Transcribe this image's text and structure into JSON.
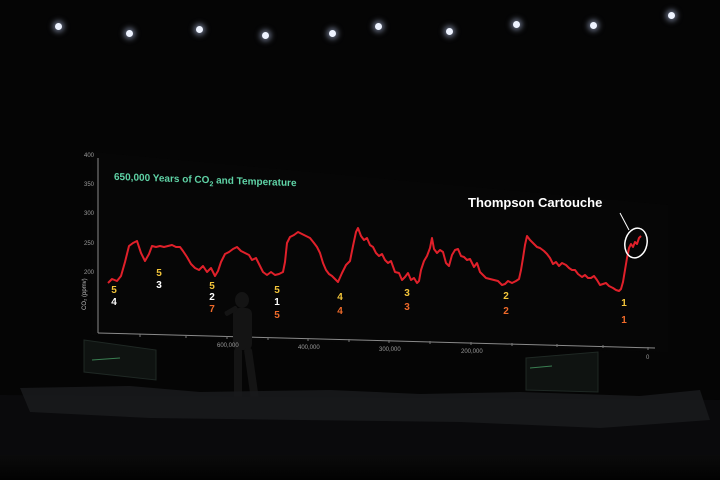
{
  "slide": {
    "title_main": "650,000 Years of CO",
    "title_sub": "2",
    "title_rest": " and Temperature",
    "callout": "Thompson Cartouche",
    "y_axis_label": "CO₂ (ppmv)",
    "y_ticks": [
      "400",
      "350",
      "300",
      "250",
      "200"
    ],
    "x_ticks": [
      "600,000",
      "400,000",
      "300,000",
      "200,000",
      "0"
    ],
    "markers": [
      {
        "top": "5",
        "bottom": "4",
        "top_color": "yellow",
        "bottom_color": "white"
      },
      {
        "top": "5",
        "bottom": "3",
        "top_color": "yellow",
        "bottom_color": "white"
      },
      {
        "top": "5",
        "mid": "2",
        "bottom": "7",
        "top_color": "yellow",
        "mid_color": "white",
        "bottom_color": "orange"
      },
      {
        "top": "5",
        "mid": "1",
        "bottom": "5",
        "top_color": "yellow",
        "mid_color": "white",
        "bottom_color": "orange"
      },
      {
        "top": "4",
        "bottom": "4",
        "top_color": "yellow",
        "bottom_color": "orange"
      },
      {
        "top": "3",
        "bottom": "3",
        "top_color": "yellow",
        "bottom_color": "orange"
      },
      {
        "top": "2",
        "bottom": "2",
        "top_color": "yellow",
        "bottom_color": "orange"
      },
      {
        "top": "1",
        "bottom": "1",
        "top_color": "yellow",
        "bottom_color": "orange"
      }
    ]
  },
  "colors": {
    "background": "#050505",
    "curve": "#e0202a",
    "title": "#5fd3a6",
    "marker_yellow": "#f3c53a",
    "marker_orange": "#ef6a2a"
  }
}
